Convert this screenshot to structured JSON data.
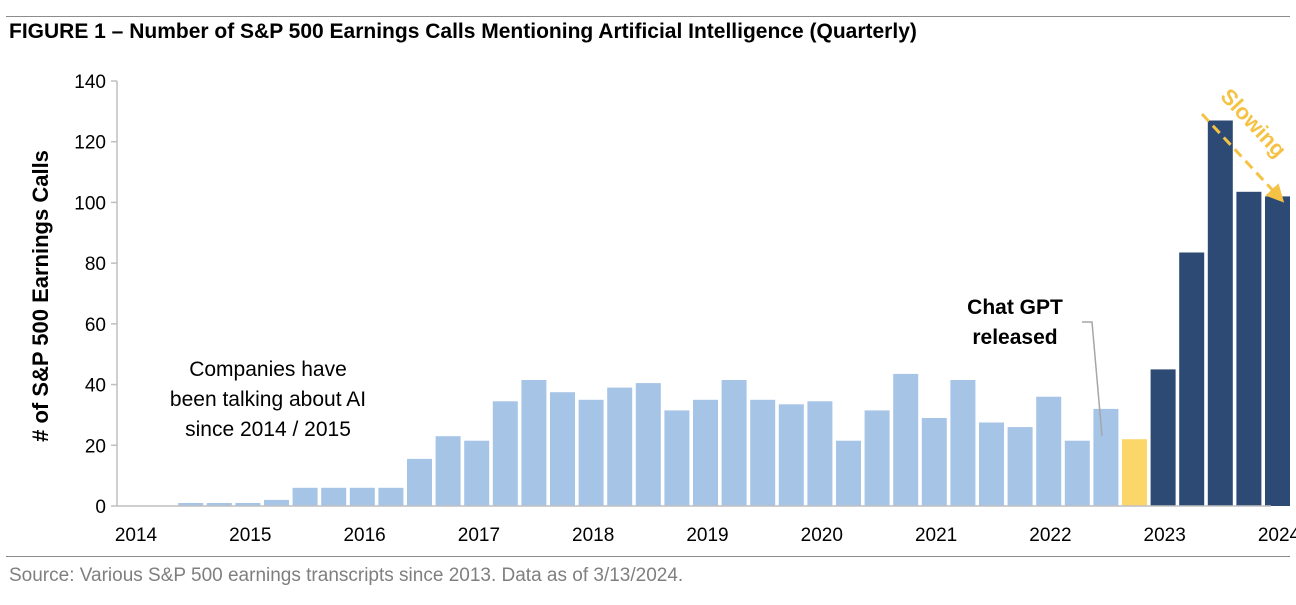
{
  "title": "FIGURE 1 – Number of S&P 500 Earnings Calls Mentioning Artificial Intelligence (Quarterly)",
  "source": "Source: Various S&P 500 earnings transcripts since 2013. Data as of 3/13/2024.",
  "colors": {
    "light_bar": "#a6c4e6",
    "highlight_bar": "#fbd76a",
    "dark_bar": "#2c4a73",
    "slowing": "#f5c245",
    "axis": "#bfbfbf",
    "connector": "#a6a6a6"
  },
  "chart_data": {
    "type": "bar",
    "ylabel": "# of S&P 500 Earnings Calls",
    "xlabel": "",
    "ylim": [
      0,
      140
    ],
    "yticks": [
      0,
      20,
      40,
      60,
      80,
      100,
      120,
      140
    ],
    "xtick_labels": [
      "2014",
      "2015",
      "2016",
      "2017",
      "2018",
      "2019",
      "2020",
      "2021",
      "2022",
      "2023",
      "2024"
    ],
    "grid": false,
    "values": [
      0,
      0,
      1,
      1,
      1,
      2,
      6,
      6,
      6,
      6,
      15.5,
      23,
      21.5,
      34.5,
      41.5,
      37.5,
      35,
      39,
      40.5,
      31.5,
      35,
      41.5,
      35,
      33.5,
      34.5,
      21.5,
      31.5,
      43.5,
      29,
      41.5,
      27.5,
      26,
      36,
      21.5,
      32,
      22,
      45,
      83.5,
      127,
      103.5,
      102
    ],
    "bar_groups": [
      "light",
      "light",
      "light",
      "light",
      "light",
      "light",
      "light",
      "light",
      "light",
      "light",
      "light",
      "light",
      "light",
      "light",
      "light",
      "light",
      "light",
      "light",
      "light",
      "light",
      "light",
      "light",
      "light",
      "light",
      "light",
      "light",
      "light",
      "light",
      "light",
      "light",
      "light",
      "light",
      "light",
      "light",
      "light",
      "highlight",
      "dark",
      "dark",
      "dark",
      "dark",
      "dark"
    ],
    "annotations": {
      "companies": [
        "Companies have",
        "been talking about AI",
        "since 2014 / 2015"
      ],
      "chatgpt": [
        "Chat GPT",
        "released"
      ],
      "slowing": "Slowing"
    }
  }
}
